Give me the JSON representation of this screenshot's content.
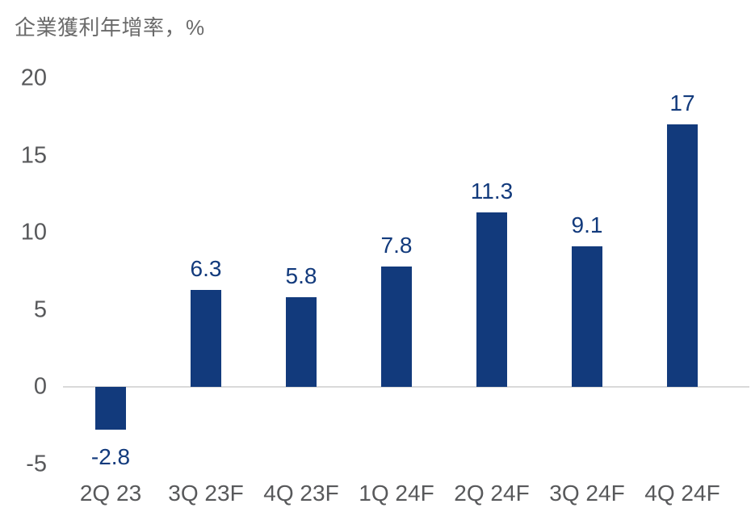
{
  "chart_data": {
    "type": "bar",
    "title": "企業獲利年增率，%",
    "categories": [
      "2Q 23",
      "3Q 23F",
      "4Q 23F",
      "1Q 24F",
      "2Q 24F",
      "3Q 24F",
      "4Q 24F"
    ],
    "values": [
      -2.8,
      6.3,
      5.8,
      7.8,
      11.3,
      9.1,
      17
    ],
    "value_labels": [
      "-2.8",
      "6.3",
      "5.8",
      "7.8",
      "11.3",
      "9.1",
      "17"
    ],
    "yticks": [
      20,
      15,
      10,
      5,
      0,
      -5
    ],
    "ylim": [
      -5,
      20
    ],
    "xlabel": "",
    "ylabel": "",
    "grid": false,
    "legend": false,
    "colors": {
      "bar": "#123a7c",
      "value_label": "#123a7c",
      "axis_text": "#58595b",
      "title_text": "#6a6a6a",
      "zero_line": "#d9d9d9",
      "background": "#ffffff"
    }
  }
}
